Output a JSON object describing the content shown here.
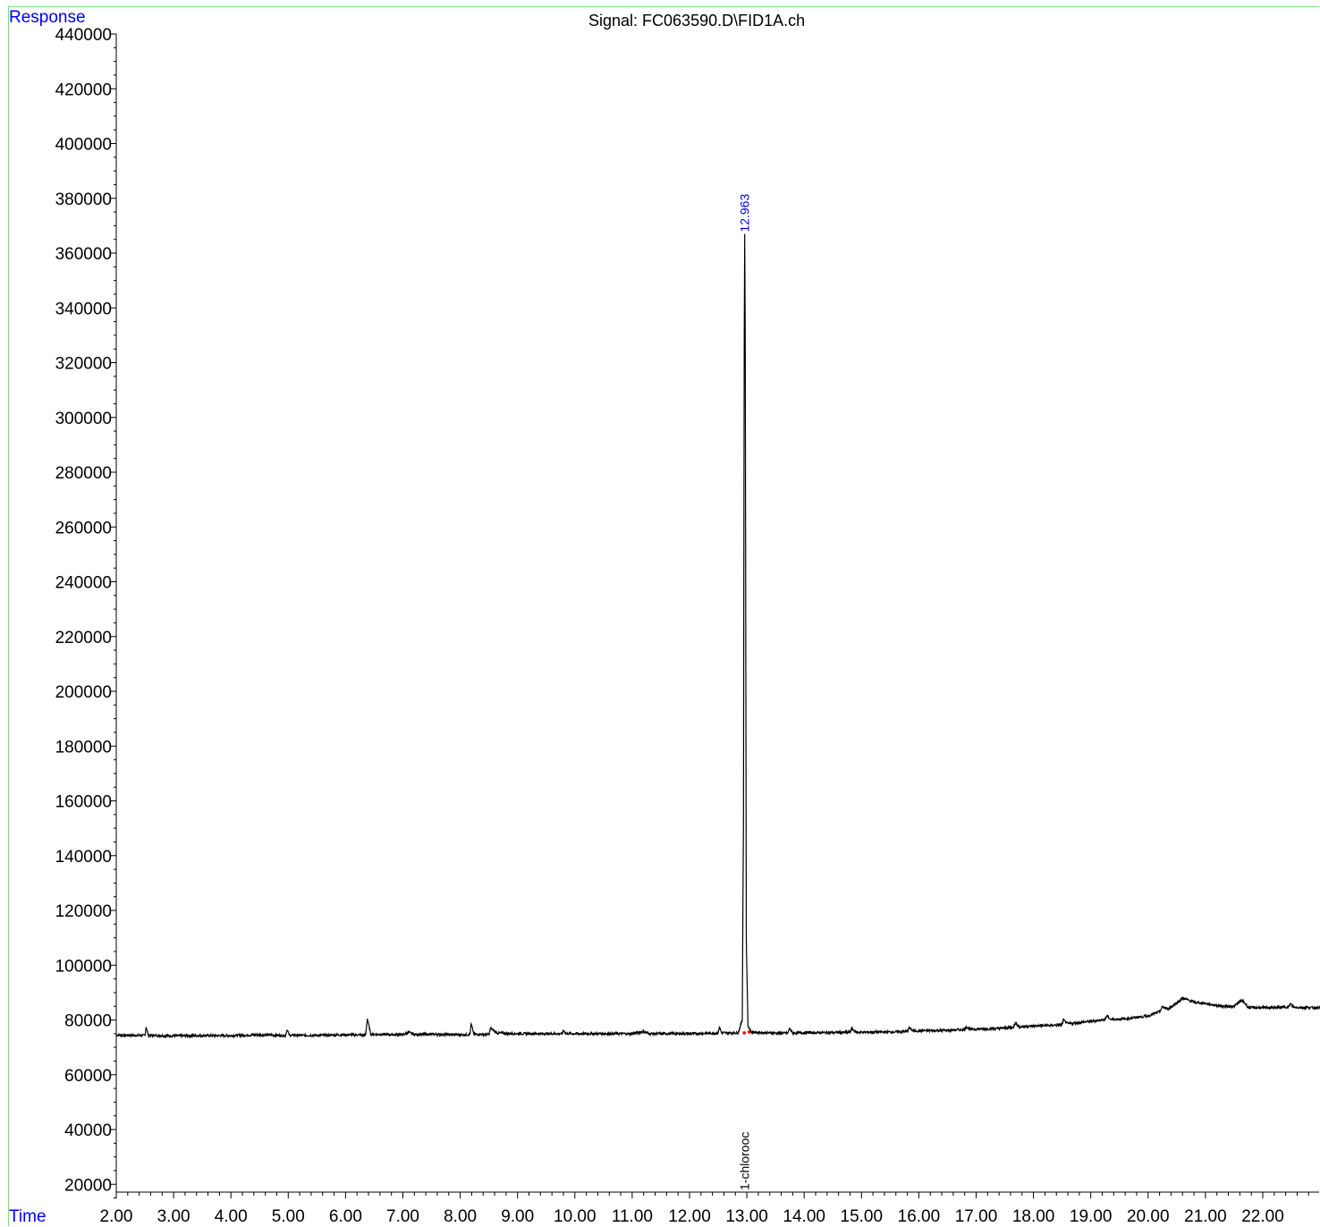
{
  "colors": {
    "frame": "#7fdc7f",
    "axis_label": "#0000ff",
    "trace": "#000000",
    "peak_label": "#0000ff",
    "compound_label": "#000000",
    "baseline_marker": "#ff0000"
  },
  "chart_data": {
    "type": "line",
    "title": "Signal: FC063590.D\\FID1A.ch",
    "xlabel": "Time",
    "ylabel": "Response",
    "xlim": [
      2.0,
      23.0
    ],
    "ylim": [
      15000,
      440000
    ],
    "x_ticks": [
      "2.00",
      "3.00",
      "4.00",
      "5.00",
      "6.00",
      "7.00",
      "8.00",
      "9.00",
      "10.00",
      "11.00",
      "12.00",
      "13.00",
      "14.00",
      "15.00",
      "16.00",
      "17.00",
      "18.00",
      "19.00",
      "20.00",
      "21.00",
      "22.00"
    ],
    "y_ticks": [
      "20000",
      "40000",
      "60000",
      "80000",
      "100000",
      "120000",
      "140000",
      "160000",
      "180000",
      "200000",
      "220000",
      "240000",
      "260000",
      "280000",
      "300000",
      "320000",
      "340000",
      "360000",
      "380000",
      "400000",
      "420000",
      "440000"
    ],
    "grid": false,
    "series": [
      {
        "points": [
          [
            2.0,
            74500
          ],
          [
            2.5,
            74300
          ],
          [
            2.52,
            77500
          ],
          [
            2.56,
            74400
          ],
          [
            3.0,
            74200
          ],
          [
            3.5,
            74300
          ],
          [
            4.0,
            74300
          ],
          [
            4.5,
            74600
          ],
          [
            4.95,
            74300
          ],
          [
            4.98,
            76500
          ],
          [
            5.02,
            74400
          ],
          [
            5.5,
            74400
          ],
          [
            6.0,
            74600
          ],
          [
            6.35,
            74500
          ],
          [
            6.38,
            80500
          ],
          [
            6.44,
            74800
          ],
          [
            7.0,
            74600
          ],
          [
            7.1,
            75500
          ],
          [
            7.2,
            74700
          ],
          [
            7.5,
            74800
          ],
          [
            8.0,
            74600
          ],
          [
            8.17,
            74700
          ],
          [
            8.19,
            78500
          ],
          [
            8.24,
            74800
          ],
          [
            8.5,
            74700
          ],
          [
            8.53,
            77000
          ],
          [
            8.65,
            75200
          ],
          [
            9.0,
            75000
          ],
          [
            9.5,
            75000
          ],
          [
            9.78,
            75000
          ],
          [
            9.8,
            76200
          ],
          [
            9.85,
            75000
          ],
          [
            10.5,
            75000
          ],
          [
            11.0,
            75000
          ],
          [
            11.2,
            75800
          ],
          [
            11.3,
            75000
          ],
          [
            12.0,
            75000
          ],
          [
            12.5,
            75200
          ],
          [
            12.52,
            77500
          ],
          [
            12.56,
            75300
          ],
          [
            12.85,
            75300
          ],
          [
            12.92,
            80000
          ],
          [
            12.94,
            150000
          ],
          [
            12.955,
            330000
          ],
          [
            12.963,
            367000
          ],
          [
            12.972,
            330000
          ],
          [
            12.99,
            110000
          ],
          [
            13.02,
            78000
          ],
          [
            13.08,
            75500
          ],
          [
            13.5,
            75200
          ],
          [
            13.72,
            75200
          ],
          [
            13.74,
            77000
          ],
          [
            13.8,
            75300
          ],
          [
            14.5,
            75400
          ],
          [
            14.8,
            75500
          ],
          [
            14.83,
            77000
          ],
          [
            14.9,
            75500
          ],
          [
            15.5,
            75600
          ],
          [
            15.8,
            75800
          ],
          [
            15.83,
            77200
          ],
          [
            15.9,
            76000
          ],
          [
            16.5,
            76200
          ],
          [
            16.8,
            76500
          ],
          [
            16.83,
            77500
          ],
          [
            16.9,
            76600
          ],
          [
            17.3,
            76800
          ],
          [
            17.65,
            77300
          ],
          [
            17.68,
            79000
          ],
          [
            17.75,
            77500
          ],
          [
            18.0,
            77800
          ],
          [
            18.5,
            78200
          ],
          [
            18.52,
            80000
          ],
          [
            18.6,
            78600
          ],
          [
            19.0,
            79500
          ],
          [
            19.25,
            80200
          ],
          [
            19.28,
            81500
          ],
          [
            19.35,
            80200
          ],
          [
            19.6,
            80400
          ],
          [
            20.0,
            81500
          ],
          [
            20.2,
            83000
          ],
          [
            20.25,
            84800
          ],
          [
            20.35,
            84000
          ],
          [
            20.55,
            87000
          ],
          [
            20.6,
            88000
          ],
          [
            20.8,
            86500
          ],
          [
            21.0,
            86000
          ],
          [
            21.3,
            85000
          ],
          [
            21.5,
            85000
          ],
          [
            21.62,
            87000
          ],
          [
            21.66,
            86800
          ],
          [
            21.75,
            84500
          ],
          [
            22.0,
            84500
          ],
          [
            22.2,
            84500
          ],
          [
            22.45,
            84800
          ],
          [
            22.48,
            85800
          ],
          [
            22.55,
            84600
          ],
          [
            23.0,
            84500
          ]
        ]
      }
    ],
    "annotations": [
      {
        "text": "12.963",
        "x": 12.963,
        "y": 367000
      },
      {
        "text": "1-chlorooc",
        "x": 12.963
      }
    ]
  }
}
